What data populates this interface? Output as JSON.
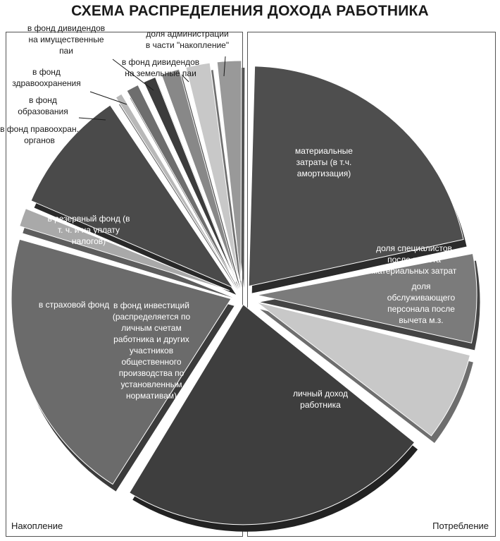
{
  "title": "СХЕМА РАСПРЕДЕЛЕНИЯ ДОХОДА РАБОТНИКА",
  "captions": {
    "left": "Накопление",
    "right": "Потребление"
  },
  "chart_data": {
    "type": "pie",
    "variant": "exploded 3D pie, split into two halves",
    "title": "СХЕМА РАСПРЕДЕЛЕНИЯ ДОХОДА РАБОТНИКА",
    "groups": [
      "Потребление",
      "Накопление"
    ],
    "slices": [
      {
        "group": "Потребление",
        "label": [
          "материальные",
          "затраты (в т.ч.",
          "амортизация)"
        ],
        "value": 25,
        "color": "#4e4e4e"
      },
      {
        "group": "Потребление",
        "label": [
          "доля специалистов",
          "после вычета",
          "материальных затрат"
        ],
        "value": 8,
        "color": "#7b7b7b"
      },
      {
        "group": "Потребление",
        "label": [
          "доля",
          "обслуживающего",
          "персонала после",
          "вычета м.з."
        ],
        "value": 8,
        "color": "#c8c8c8"
      },
      {
        "group": "Потребление",
        "label": [
          "личный доход",
          "работника"
        ],
        "value": 27,
        "color": "#3e3e3e"
      },
      {
        "group": "Накопление",
        "label": [
          "в фонд инвестиций",
          "(распределяется по",
          "личным счетам",
          "работника и других",
          "участников",
          "общественного",
          "производства по",
          "установленным",
          "нормативам)"
        ],
        "value": 24,
        "color": "#6b6b6b"
      },
      {
        "group": "Накопление",
        "label": [
          "в страховой фонд"
        ],
        "value": 2,
        "color": "#a9a9a9"
      },
      {
        "group": "Накопление",
        "label": [
          "в резервный фонд (в",
          "т. ч. и на уплату",
          "налогов)"
        ],
        "value": 11,
        "color": "#4a4a4a"
      },
      {
        "group": "Накопление",
        "label": [
          "в фонд правоохран.",
          "органов"
        ],
        "value": 1,
        "color": "#b8b8b8"
      },
      {
        "group": "Накопление",
        "label": [
          "в фонд",
          "образования"
        ],
        "value": 1.5,
        "color": "#6e6e6e"
      },
      {
        "group": "Накопление",
        "label": [
          "в фонд",
          "здравоохранения"
        ],
        "value": 1.5,
        "color": "#3c3c3c"
      },
      {
        "group": "Накопление",
        "label": [
          "в фонд дивидендов",
          "на имущественные",
          "паи"
        ],
        "value": 2,
        "color": "#888888"
      },
      {
        "group": "Накопление",
        "label": [
          "в фонд дивидендов",
          "на земельные паи"
        ],
        "value": 2.5,
        "color": "#c8c8c8"
      },
      {
        "group": "Накопление",
        "label": [
          "доля администрации",
          "в части \"накопление\""
        ],
        "value": 2.5,
        "color": "#999999"
      }
    ]
  }
}
